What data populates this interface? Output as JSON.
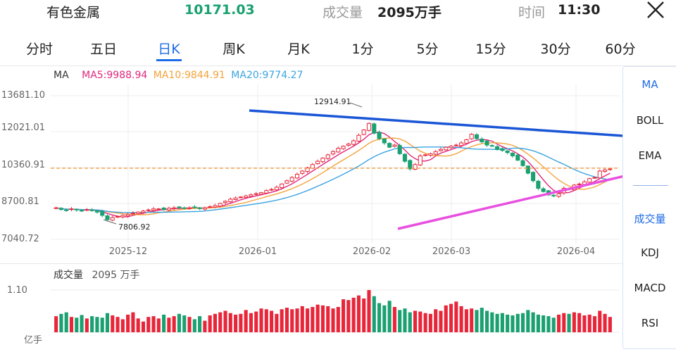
{
  "header": {
    "name": "有色金属",
    "price": "10171.03",
    "volume_label": "成交量",
    "volume_value": "2095万手",
    "time_label": "时间",
    "time_value": "11:30"
  },
  "tabs": [
    {
      "label": "分时",
      "active": false
    },
    {
      "label": "五日",
      "active": false
    },
    {
      "label": "日K",
      "active": true
    },
    {
      "label": "周K",
      "active": false
    },
    {
      "label": "月K",
      "active": false
    },
    {
      "label": "1分",
      "active": false
    },
    {
      "label": "5分",
      "active": false
    },
    {
      "label": "15分",
      "active": false
    },
    {
      "label": "30分",
      "active": false
    },
    {
      "label": "60分",
      "active": false
    }
  ],
  "ma_legend": {
    "label": "MA",
    "ma5": "MA5:9988.94",
    "ma10": "MA10:9844.91",
    "ma20": "MA20:9774.27"
  },
  "side_menu": {
    "items_top": [
      "MA",
      "BOLL",
      "EMA"
    ],
    "items_bottom": [
      "成交量",
      "KDJ",
      "MACD",
      "RSI"
    ]
  },
  "volume_panel": {
    "title": "成交量",
    "value": "2095 万手",
    "ymax_label": "1.10",
    "unit_label": "亿手"
  },
  "colors": {
    "up": "#e8263a",
    "down": "#1aa071",
    "accent": "#1e6be6",
    "ma5": "#e0287e",
    "ma10": "#f3a33b",
    "ma20": "#3ba4e0",
    "trend_upper": "#1a56d6",
    "trend_lower": "#e84fe0",
    "ref_line": "#f39a3a"
  },
  "chart_data": {
    "type": "candlestick",
    "y_ticks": [
      "13681.10",
      "12021.01",
      "10360.91",
      "8700.81",
      "7040.72"
    ],
    "ylim": [
      7040.72,
      13681.1
    ],
    "x_ticks": [
      "2025-12",
      "2026-01",
      "2026-02",
      "2026-03",
      "2026-04"
    ],
    "annotations": {
      "high": "12914.91",
      "low": "7806.92"
    },
    "reference_value": 10171.03,
    "closes": [
      8500,
      8420,
      8380,
      8450,
      8400,
      8350,
      8420,
      8380,
      8300,
      8150,
      7950,
      8050,
      8100,
      8150,
      8200,
      8250,
      8300,
      8350,
      8400,
      8450,
      8450,
      8420,
      8480,
      8500,
      8520,
      8480,
      8500,
      8520,
      8460,
      8500,
      8550,
      8600,
      8700,
      8800,
      8900,
      8950,
      9000,
      9050,
      9100,
      9150,
      9200,
      9300,
      9350,
      9450,
      9600,
      9750,
      9900,
      10050,
      10200,
      10350,
      10500,
      10650,
      10800,
      10950,
      11100,
      11250,
      11350,
      11450,
      11600,
      11850,
      12100,
      12400,
      11950,
      11700,
      11500,
      11300,
      11400,
      11000,
      10650,
      10300,
      10500,
      10900,
      10950,
      11000,
      11100,
      11200,
      11300,
      11350,
      11400,
      11500,
      11650,
      11900,
      11700,
      11550,
      11400,
      11350,
      11200,
      11150,
      11050,
      10900,
      10700,
      10450,
      10100,
      9750,
      9400,
      9250,
      9100,
      9050,
      9150,
      9400,
      9350,
      9550,
      9600,
      9700,
      9850,
      9900,
      10200,
      10250,
      10300
    ],
    "volumes": [
      0.42,
      0.48,
      0.52,
      0.4,
      0.38,
      0.45,
      0.36,
      0.42,
      0.4,
      0.38,
      0.5,
      0.44,
      0.4,
      0.34,
      0.46,
      0.52,
      0.36,
      0.28,
      0.4,
      0.42,
      0.36,
      0.46,
      0.38,
      0.42,
      0.48,
      0.44,
      0.4,
      0.34,
      0.42,
      0.3,
      0.44,
      0.48,
      0.52,
      0.56,
      0.5,
      0.46,
      0.48,
      0.58,
      0.5,
      0.54,
      0.62,
      0.6,
      0.56,
      0.48,
      0.6,
      0.64,
      0.6,
      0.62,
      0.68,
      0.62,
      0.66,
      0.72,
      0.7,
      0.68,
      0.62,
      0.66,
      0.86,
      0.84,
      0.9,
      0.96,
      0.88,
      1.1,
      0.94,
      0.76,
      0.7,
      0.82,
      0.66,
      0.58,
      0.62,
      0.52,
      0.56,
      0.54,
      0.5,
      0.48,
      0.6,
      0.56,
      0.7,
      0.74,
      0.8,
      0.68,
      0.6,
      0.62,
      0.58,
      0.64,
      0.56,
      0.52,
      0.48,
      0.5,
      0.46,
      0.44,
      0.48,
      0.5,
      0.58,
      0.52,
      0.46,
      0.44,
      0.42,
      0.38,
      0.46,
      0.5,
      0.48,
      0.52,
      0.5,
      0.44,
      0.46,
      0.42,
      0.56,
      0.48,
      0.4
    ]
  }
}
